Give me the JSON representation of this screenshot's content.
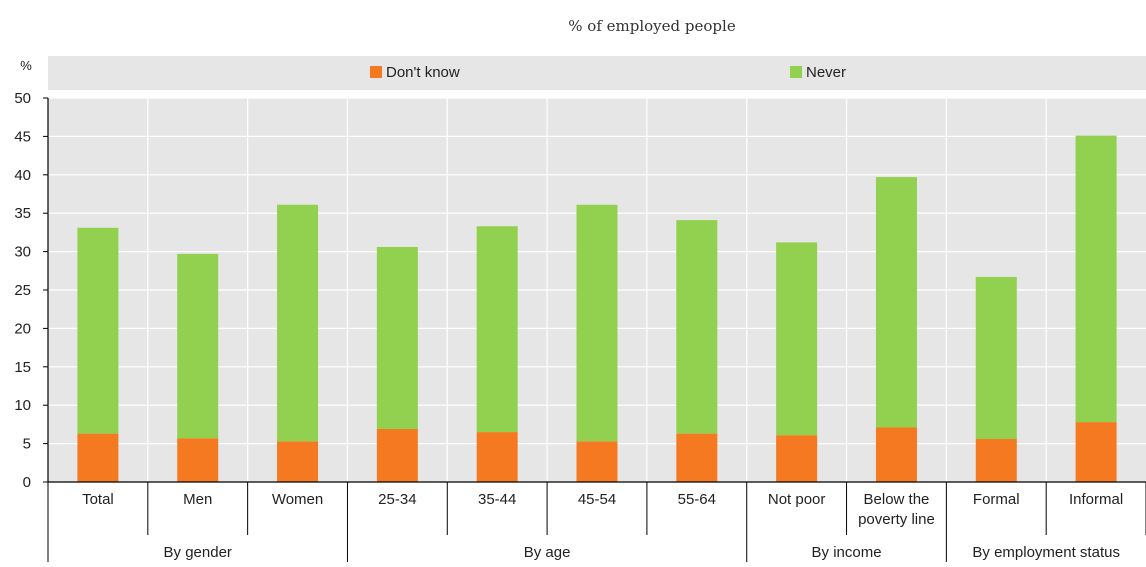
{
  "chart_data": {
    "type": "bar",
    "stacked": true,
    "subtitle": "% of employed people",
    "ylabel": "%",
    "ylim": [
      0,
      50
    ],
    "yticks": [
      0,
      5,
      10,
      15,
      20,
      25,
      30,
      35,
      40,
      45,
      50
    ],
    "categories": [
      "Total",
      "Men",
      "Women",
      "25-34",
      "35-44",
      "45-54",
      "55-64",
      "Not poor",
      "Below the poverty line",
      "Formal",
      "Informal"
    ],
    "category_lines": [
      [
        "Total"
      ],
      [
        "Men"
      ],
      [
        "Women"
      ],
      [
        "25-34"
      ],
      [
        "35-44"
      ],
      [
        "45-54"
      ],
      [
        "55-64"
      ],
      [
        "Not poor"
      ],
      [
        "Below the",
        "poverty line"
      ],
      [
        "Formal"
      ],
      [
        "Informal"
      ]
    ],
    "groups": [
      {
        "label": "By gender",
        "start": 1,
        "end": 2,
        "label_span": [
          0,
          2
        ]
      },
      {
        "label": "By age",
        "start": 3,
        "end": 6
      },
      {
        "label": "By income",
        "start": 7,
        "end": 8
      },
      {
        "label": "By employment status",
        "start": 9,
        "end": 10
      }
    ],
    "series": [
      {
        "name": "Don't know",
        "color": "#f47920",
        "values": [
          6.3,
          5.7,
          5.3,
          6.9,
          6.5,
          5.3,
          6.3,
          6.1,
          7.1,
          5.6,
          7.8
        ]
      },
      {
        "name": "Never",
        "color": "#92d050",
        "values": [
          26.8,
          24.0,
          30.8,
          23.7,
          26.8,
          30.8,
          27.8,
          25.1,
          32.6,
          21.1,
          37.3
        ]
      }
    ],
    "grid": true,
    "legend_position": "top"
  }
}
